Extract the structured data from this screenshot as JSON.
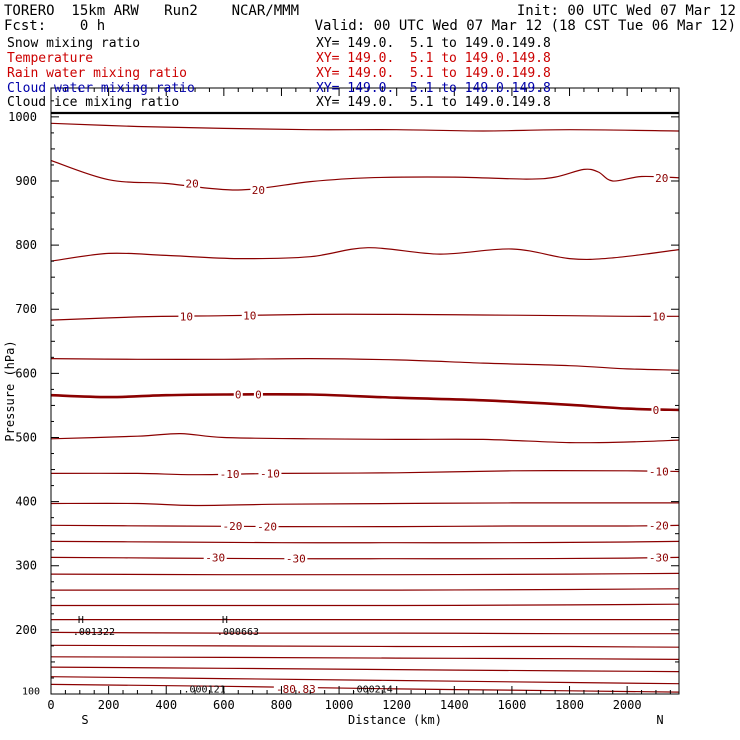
{
  "header": {
    "model": "TORERO  15km ARW   Run2    NCAR/MMM",
    "init": "Init: 00 UTC Wed 07 Mar 12",
    "fcst": "Fcst:    0 h",
    "valid": "Valid: 00 UTC Wed 07 Mar 12 (18 CST Tue 06 Mar 12)"
  },
  "legend": [
    {
      "label": "Snow mixing ratio",
      "xy": "XY= 149.0.  5.1 to 149.0.149.8",
      "color": "#000000"
    },
    {
      "label": "Temperature",
      "xy": "XY= 149.0.  5.1 to 149.0.149.8",
      "color": "#cc0000"
    },
    {
      "label": "Rain water mixing ratio",
      "xy": "XY= 149.0.  5.1 to 149.0.149.8",
      "color": "#cc0000"
    },
    {
      "label": "Cloud water mixing ratio",
      "xy": "XY= 149.0.  5.1 to 149.0.149.8",
      "color": "#0000aa"
    },
    {
      "label": "Cloud ice mixing ratio",
      "xy": "XY= 149.0.  5.1 to 149.0.149.8",
      "color": "#000000"
    }
  ],
  "chart_data": {
    "type": "line",
    "title": "Cross section",
    "xlabel": "Distance (km)",
    "ylabel": "Pressure (hPa)",
    "xlim": [
      0,
      2180
    ],
    "ylim": [
      1045,
      100
    ],
    "xticks": [
      0,
      200,
      400,
      600,
      800,
      1000,
      1200,
      1400,
      1600,
      1800,
      2000
    ],
    "xtick_labels": [
      "0",
      "200",
      "400",
      "600",
      "800",
      "1000",
      "1200",
      "1400",
      "1600",
      "1800",
      "2000"
    ],
    "yticks": [
      200,
      300,
      400,
      500,
      600,
      700,
      800,
      900,
      1000
    ],
    "ytick_labels": [
      "200",
      "300",
      "400",
      "500",
      "600",
      "700",
      "800",
      "900",
      "1000"
    ],
    "ytick_partial_label": "100",
    "side_labels": {
      "left": "S",
      "right": "N"
    },
    "surface_pressure": 1006,
    "contour_color": "#8b0000",
    "isotherms": [
      {
        "value": -80,
        "points": [
          [
            0,
            115
          ],
          [
            600,
            112
          ],
          [
            1200,
            108
          ],
          [
            1800,
            105
          ],
          [
            2180,
            103
          ]
        ]
      },
      {
        "value": -75,
        "points": [
          [
            0,
            127
          ],
          [
            600,
            124
          ],
          [
            1200,
            121
          ],
          [
            1800,
            118
          ],
          [
            2180,
            116
          ]
        ]
      },
      {
        "value": -70,
        "points": [
          [
            0,
            142
          ],
          [
            600,
            140
          ],
          [
            1200,
            138
          ],
          [
            1800,
            136
          ],
          [
            2180,
            135
          ]
        ]
      },
      {
        "value": -65,
        "points": [
          [
            0,
            158
          ],
          [
            600,
            157
          ],
          [
            1200,
            156
          ],
          [
            1800,
            155
          ],
          [
            2180,
            154
          ]
        ]
      },
      {
        "value": -60,
        "points": [
          [
            0,
            176
          ],
          [
            600,
            175
          ],
          [
            1200,
            174
          ],
          [
            1800,
            174
          ],
          [
            2180,
            173
          ]
        ]
      },
      {
        "value": -55,
        "points": [
          [
            0,
            196
          ],
          [
            600,
            195
          ],
          [
            1200,
            195
          ],
          [
            1800,
            194
          ],
          [
            2180,
            194
          ]
        ]
      },
      {
        "value": -50,
        "points": [
          [
            0,
            216
          ],
          [
            600,
            216
          ],
          [
            1200,
            216
          ],
          [
            1800,
            216
          ],
          [
            2180,
            216
          ]
        ]
      },
      {
        "value": -45,
        "points": [
          [
            0,
            238
          ],
          [
            600,
            238
          ],
          [
            1200,
            238
          ],
          [
            1800,
            239
          ],
          [
            2180,
            240
          ]
        ]
      },
      {
        "value": -40,
        "points": [
          [
            0,
            262
          ],
          [
            600,
            262
          ],
          [
            1200,
            262
          ],
          [
            1800,
            263
          ],
          [
            2180,
            264
          ]
        ]
      },
      {
        "value": -35,
        "points": [
          [
            0,
            287
          ],
          [
            600,
            286
          ],
          [
            1200,
            286
          ],
          [
            1800,
            287
          ],
          [
            2180,
            288
          ]
        ]
      },
      {
        "value": -30,
        "points": [
          [
            0,
            313
          ],
          [
            400,
            312
          ],
          [
            800,
            311
          ],
          [
            1200,
            311
          ],
          [
            1600,
            311
          ],
          [
            2000,
            312
          ],
          [
            2180,
            313
          ]
        ]
      },
      {
        "value": -25,
        "points": [
          [
            0,
            338
          ],
          [
            400,
            337
          ],
          [
            800,
            336
          ],
          [
            1200,
            336
          ],
          [
            1600,
            336
          ],
          [
            2000,
            337
          ],
          [
            2180,
            338
          ]
        ]
      },
      {
        "value": -20,
        "points": [
          [
            0,
            363
          ],
          [
            400,
            362
          ],
          [
            800,
            361
          ],
          [
            1200,
            361
          ],
          [
            1600,
            362
          ],
          [
            2000,
            362
          ],
          [
            2180,
            363
          ]
        ]
      },
      {
        "value": -15,
        "points": [
          [
            0,
            397
          ],
          [
            300,
            397
          ],
          [
            500,
            394
          ],
          [
            800,
            396
          ],
          [
            1200,
            397
          ],
          [
            1600,
            398
          ],
          [
            2000,
            398
          ],
          [
            2180,
            398
          ]
        ]
      },
      {
        "value": -10,
        "points": [
          [
            0,
            444
          ],
          [
            300,
            444
          ],
          [
            500,
            442
          ],
          [
            800,
            444
          ],
          [
            1200,
            445
          ],
          [
            1600,
            448
          ],
          [
            2000,
            448
          ],
          [
            2180,
            447
          ]
        ]
      },
      {
        "value": -5,
        "points": [
          [
            0,
            498
          ],
          [
            300,
            502
          ],
          [
            450,
            506
          ],
          [
            600,
            500
          ],
          [
            900,
            498
          ],
          [
            1200,
            497
          ],
          [
            1500,
            497
          ],
          [
            1800,
            492
          ],
          [
            2000,
            493
          ],
          [
            2180,
            496
          ]
        ]
      },
      {
        "value": 0,
        "bold": true,
        "points": [
          [
            0,
            566
          ],
          [
            200,
            563
          ],
          [
            400,
            566
          ],
          [
            600,
            567
          ],
          [
            900,
            567
          ],
          [
            1200,
            562
          ],
          [
            1500,
            558
          ],
          [
            1800,
            551
          ],
          [
            2000,
            545
          ],
          [
            2180,
            543
          ]
        ]
      },
      {
        "value": 5,
        "points": [
          [
            0,
            623
          ],
          [
            300,
            622
          ],
          [
            600,
            622
          ],
          [
            900,
            623
          ],
          [
            1200,
            621
          ],
          [
            1500,
            616
          ],
          [
            1800,
            612
          ],
          [
            2000,
            607
          ],
          [
            2180,
            605
          ]
        ]
      },
      {
        "value": 10,
        "points": [
          [
            0,
            683
          ],
          [
            300,
            688
          ],
          [
            600,
            690
          ],
          [
            900,
            692
          ],
          [
            1200,
            692
          ],
          [
            1500,
            691
          ],
          [
            1800,
            690
          ],
          [
            2000,
            689
          ],
          [
            2180,
            689
          ]
        ]
      },
      {
        "value": 15,
        "points": [
          [
            0,
            775
          ],
          [
            200,
            787
          ],
          [
            400,
            784
          ],
          [
            650,
            779
          ],
          [
            900,
            782
          ],
          [
            1100,
            796
          ],
          [
            1350,
            786
          ],
          [
            1600,
            794
          ],
          [
            1800,
            779
          ],
          [
            1950,
            780
          ],
          [
            2180,
            793
          ]
        ]
      },
      {
        "value": 20,
        "points": [
          [
            0,
            932
          ],
          [
            200,
            902
          ],
          [
            400,
            896
          ],
          [
            650,
            886
          ],
          [
            900,
            899
          ],
          [
            1100,
            905
          ],
          [
            1400,
            906
          ],
          [
            1650,
            903
          ],
          [
            1750,
            906
          ],
          [
            1850,
            918
          ],
          [
            1900,
            914
          ],
          [
            1950,
            900
          ],
          [
            2050,
            907
          ],
          [
            2180,
            905
          ]
        ]
      },
      {
        "value": 25,
        "points": [
          [
            0,
            990
          ],
          [
            300,
            985
          ],
          [
            600,
            982
          ],
          [
            900,
            980
          ],
          [
            1200,
            980
          ],
          [
            1500,
            978
          ],
          [
            1800,
            980
          ],
          [
            2180,
            978
          ]
        ]
      }
    ],
    "contour_labels": [
      {
        "text": "-30",
        "x": 570,
        "p": 313
      },
      {
        "text": "-30",
        "x": 850,
        "p": 311
      },
      {
        "text": "-30",
        "x": 2110,
        "p": 313
      },
      {
        "text": "-20",
        "x": 630,
        "p": 362
      },
      {
        "text": "-20",
        "x": 750,
        "p": 361
      },
      {
        "text": "-20",
        "x": 2110,
        "p": 363
      },
      {
        "text": "-10",
        "x": 620,
        "p": 443
      },
      {
        "text": "-10",
        "x": 760,
        "p": 444
      },
      {
        "text": "-10",
        "x": 2110,
        "p": 447
      },
      {
        "text": "0",
        "x": 650,
        "p": 567
      },
      {
        "text": "0",
        "x": 720,
        "p": 567
      },
      {
        "text": "0",
        "x": 2100,
        "p": 543
      },
      {
        "text": "10",
        "x": 470,
        "p": 689
      },
      {
        "text": "10",
        "x": 690,
        "p": 690
      },
      {
        "text": "10",
        "x": 2110,
        "p": 689
      },
      {
        "text": "20",
        "x": 490,
        "p": 896
      },
      {
        "text": "20",
        "x": 720,
        "p": 886
      },
      {
        "text": "20",
        "x": 2120,
        "p": 905
      },
      {
        "text": "-80.83",
        "x": 850,
        "p": 108
      }
    ],
    "highs": [
      {
        "symbol": "H",
        "value": ".001322",
        "x": 180,
        "p": 198
      },
      {
        "symbol": "H",
        "value": ".000663",
        "x": 680,
        "p": 198
      }
    ],
    "small_annotations": [
      {
        "text": ".000121",
        "x": 460,
        "p": 107
      },
      {
        "text": ".000214",
        "x": 1040,
        "p": 107
      },
      {
        "text": "100",
        "x": -60,
        "p": 104
      }
    ]
  }
}
